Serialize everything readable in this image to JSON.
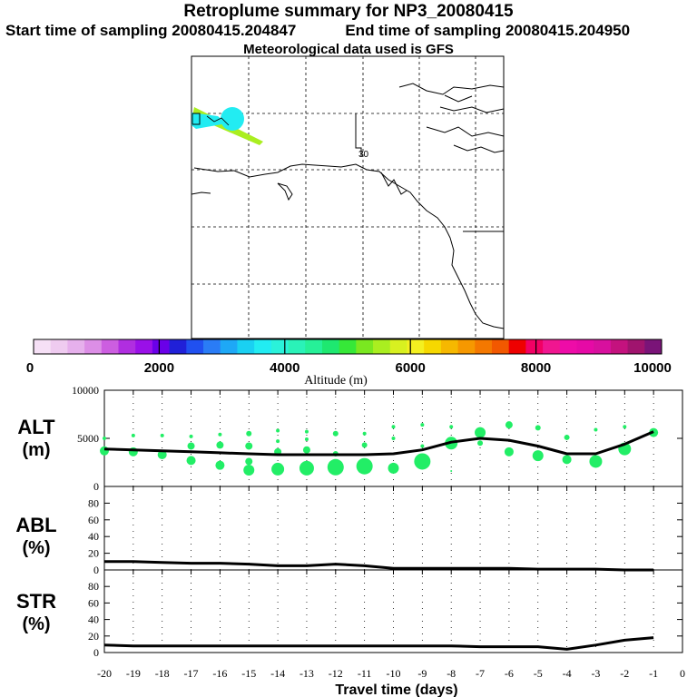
{
  "title": "Retroplume summary for NP3_20080415",
  "start_time_label": "Start time of sampling 20080415.204847",
  "end_time_label": "End time of sampling 20080415.204950",
  "met_label": "Meteorological data used is GFS",
  "map": {
    "grid_label": "30"
  },
  "colorbar": {
    "label": "Altitude (m)",
    "ticks": [
      "0",
      "2000",
      "4000",
      "6000",
      "8000",
      "10000"
    ],
    "colors": [
      "#f6e0f6",
      "#efcbf0",
      "#e6b0ec",
      "#dc8ee6",
      "#cc5ee0",
      "#b02ee0",
      "#9a10e8",
      "#6a00e8",
      "#2020d8",
      "#2050f0",
      "#2a7cf6",
      "#1ea8f6",
      "#1ad0f2",
      "#22ecf2",
      "#2af2da",
      "#2af2b8",
      "#26f098",
      "#1ee870",
      "#36e838",
      "#7ae820",
      "#aaee20",
      "#d8f020",
      "#f4f020",
      "#f6d800",
      "#f6b800",
      "#f69800",
      "#f47800",
      "#f25800",
      "#ee0000",
      "#f20064",
      "#f01690",
      "#ee0ca8",
      "#e60aa6",
      "#d8109e",
      "#c4127e",
      "#a0146e",
      "#7a1478"
    ]
  },
  "chart_data": [
    {
      "type": "line",
      "panel": "ALT",
      "ylabel": "ALT",
      "yunit": "(m)",
      "ylim": [
        0,
        10000
      ],
      "yticks": [
        "0",
        "5000",
        "10000"
      ],
      "x": [
        -20,
        -19,
        -18,
        -17,
        -16,
        -15,
        -14,
        -13,
        -12,
        -11,
        -10,
        -9,
        -8,
        -7,
        -6,
        -5,
        -4,
        -3,
        -2,
        -1
      ],
      "values": [
        3900,
        3800,
        3700,
        3600,
        3500,
        3400,
        3300,
        3300,
        3300,
        3300,
        3400,
        3800,
        4600,
        5000,
        4800,
        4200,
        3400,
        3400,
        4400,
        5700
      ],
      "dots": [
        {
          "x": -20,
          "y": 3700,
          "r": 5
        },
        {
          "x": -20,
          "y": 5000,
          "r": 2
        },
        {
          "x": -19,
          "y": 3600,
          "r": 5
        },
        {
          "x": -19,
          "y": 5300,
          "r": 2
        },
        {
          "x": -18,
          "y": 3300,
          "r": 5
        },
        {
          "x": -18,
          "y": 5300,
          "r": 2
        },
        {
          "x": -17,
          "y": 2700,
          "r": 5
        },
        {
          "x": -17,
          "y": 4200,
          "r": 4
        },
        {
          "x": -17,
          "y": 5200,
          "r": 2
        },
        {
          "x": -16,
          "y": 2200,
          "r": 5
        },
        {
          "x": -16,
          "y": 4300,
          "r": 4
        },
        {
          "x": -16,
          "y": 5400,
          "r": 2
        },
        {
          "x": -15,
          "y": 1700,
          "r": 6
        },
        {
          "x": -15,
          "y": 2600,
          "r": 4
        },
        {
          "x": -15,
          "y": 4200,
          "r": 4
        },
        {
          "x": -15,
          "y": 5500,
          "r": 3
        },
        {
          "x": -14,
          "y": 1800,
          "r": 7
        },
        {
          "x": -14,
          "y": 3600,
          "r": 4
        },
        {
          "x": -14,
          "y": 4700,
          "r": 2
        },
        {
          "x": -14,
          "y": 5800,
          "r": 2
        },
        {
          "x": -13,
          "y": 1900,
          "r": 8
        },
        {
          "x": -13,
          "y": 3800,
          "r": 4
        },
        {
          "x": -13,
          "y": 4900,
          "r": 2
        },
        {
          "x": -13,
          "y": 5700,
          "r": 2
        },
        {
          "x": -12,
          "y": 2000,
          "r": 9
        },
        {
          "x": -12,
          "y": 3400,
          "r": 3
        },
        {
          "x": -12,
          "y": 5500,
          "r": 3
        },
        {
          "x": -11,
          "y": 2100,
          "r": 9
        },
        {
          "x": -11,
          "y": 4300,
          "r": 3
        },
        {
          "x": -11,
          "y": 5500,
          "r": 2
        },
        {
          "x": -10,
          "y": 1900,
          "r": 6
        },
        {
          "x": -10,
          "y": 5000,
          "r": 2
        },
        {
          "x": -10,
          "y": 6200,
          "r": 2
        },
        {
          "x": -9,
          "y": 2600,
          "r": 9
        },
        {
          "x": -9,
          "y": 4200,
          "r": 2
        },
        {
          "x": -9,
          "y": 6400,
          "r": 2
        },
        {
          "x": -8,
          "y": 4500,
          "r": 7
        },
        {
          "x": -8,
          "y": 6200,
          "r": 2
        },
        {
          "x": -8,
          "y": 1600,
          "r": 1
        },
        {
          "x": -7,
          "y": 5600,
          "r": 6
        },
        {
          "x": -7,
          "y": 4500,
          "r": 3
        },
        {
          "x": -6,
          "y": 6400,
          "r": 4
        },
        {
          "x": -6,
          "y": 3600,
          "r": 5
        },
        {
          "x": -5,
          "y": 6100,
          "r": 3
        },
        {
          "x": -5,
          "y": 3200,
          "r": 6
        },
        {
          "x": -4,
          "y": 5100,
          "r": 3
        },
        {
          "x": -4,
          "y": 2800,
          "r": 5
        },
        {
          "x": -3,
          "y": 5900,
          "r": 2
        },
        {
          "x": -3,
          "y": 2600,
          "r": 7
        },
        {
          "x": -2,
          "y": 6200,
          "r": 2
        },
        {
          "x": -2,
          "y": 3900,
          "r": 7
        },
        {
          "x": -1,
          "y": 5600,
          "r": 5
        }
      ]
    },
    {
      "type": "line",
      "panel": "ABL",
      "ylabel": "ABL",
      "yunit": "(%)",
      "ylim": [
        0,
        100
      ],
      "yticks": [
        "0",
        "20",
        "40",
        "60",
        "80"
      ],
      "x": [
        -20,
        -19,
        -18,
        -17,
        -16,
        -15,
        -14,
        -13,
        -12,
        -11,
        -10,
        -9,
        -8,
        -7,
        -6,
        -5,
        -4,
        -3,
        -2,
        -1
      ],
      "values": [
        10,
        10,
        9,
        8,
        8,
        7,
        5,
        5,
        7,
        5,
        2,
        2,
        2,
        2,
        2,
        1,
        1,
        1,
        0,
        0
      ]
    },
    {
      "type": "line",
      "panel": "STR",
      "ylabel": "STR",
      "yunit": "(%)",
      "ylim": [
        0,
        100
      ],
      "yticks": [
        "0",
        "20",
        "40",
        "60",
        "80"
      ],
      "x": [
        -20,
        -19,
        -18,
        -17,
        -16,
        -15,
        -14,
        -13,
        -12,
        -11,
        -10,
        -9,
        -8,
        -7,
        -6,
        -5,
        -4,
        -3,
        -2,
        -1
      ],
      "values": [
        9,
        8,
        8,
        8,
        8,
        8,
        8,
        8,
        8,
        8,
        8,
        8,
        8,
        7,
        7,
        7,
        4,
        9,
        15,
        18
      ]
    }
  ],
  "xaxis": {
    "label": "Travel time (days)",
    "ticks": [
      "-20",
      "-19",
      "-18",
      "-17",
      "-16",
      "-15",
      "-14",
      "-13",
      "-12",
      "-11",
      "-10",
      "-9",
      "-8",
      "-7",
      "-6",
      "-5",
      "-4",
      "-3",
      "-2",
      "-1",
      "0"
    ]
  }
}
